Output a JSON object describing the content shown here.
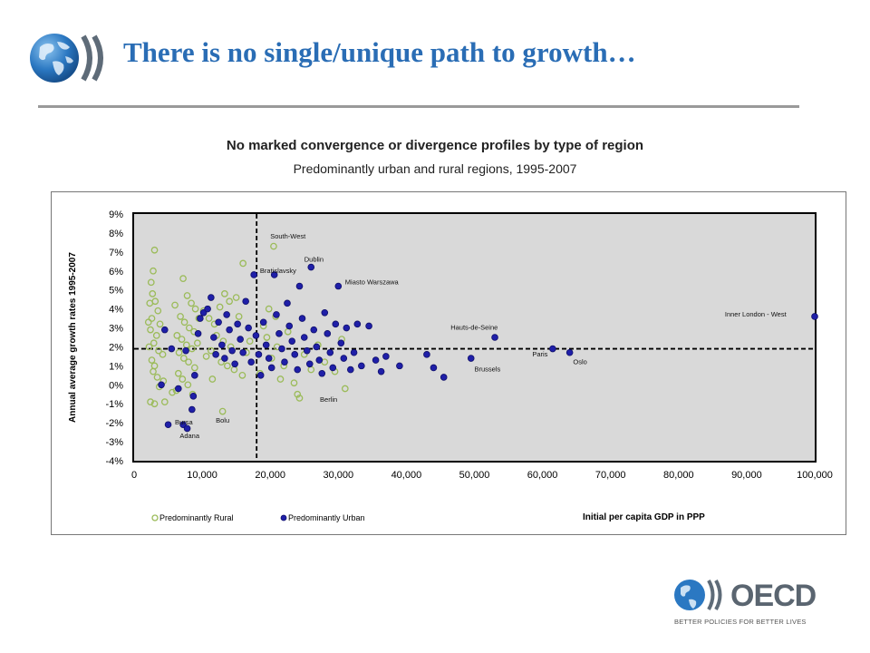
{
  "slide": {
    "title": "There is no single/unique path to  growth…"
  },
  "branding": {
    "logo_icon": "globe-icon",
    "word": "OECD",
    "tagline": "BETTER POLICIES FOR BETTER LIVES"
  },
  "colors": {
    "title": "#2a6db5",
    "rural": "#9bbb59",
    "urban": "#1f1fa8",
    "urban_edge": "#10106a",
    "plot_bg": "#d9d9d9"
  },
  "chart_data": {
    "type": "scatter",
    "title": "No marked convergence or divergence profiles by type of region",
    "subtitle": "Predominantly urban and rural regions, 1995-2007",
    "xlabel": "Initial per capita GDP in PPP",
    "ylabel": "Annual average growth rates 1995-2007",
    "xlim": [
      0,
      100000
    ],
    "ylim": [
      -4,
      9
    ],
    "x_ticks": [
      "0",
      "10,000",
      "20,000",
      "30,000",
      "40,000",
      "50,000",
      "60,000",
      "70,000",
      "80,000",
      "90,000",
      "100,000"
    ],
    "y_ticks": [
      "9%",
      "8%",
      "7%",
      "6%",
      "5%",
      "4%",
      "3%",
      "2%",
      "1%",
      "0%",
      "-1%",
      "-2%",
      "-3%",
      "-4%"
    ],
    "reference_lines": {
      "x": 18000,
      "y": 1.9,
      "style": "dashed"
    },
    "grid": false,
    "legend_position": "bottom-left",
    "series": [
      {
        "name": "Predominantly Rural",
        "marker": "hollow-circle",
        "points": [
          [
            3000,
            7.1
          ],
          [
            2800,
            6.0
          ],
          [
            2500,
            5.4
          ],
          [
            2700,
            4.8
          ],
          [
            2300,
            4.3
          ],
          [
            3100,
            4.4
          ],
          [
            3500,
            3.9
          ],
          [
            2600,
            3.5
          ],
          [
            2100,
            3.3
          ],
          [
            3800,
            3.2
          ],
          [
            2400,
            2.9
          ],
          [
            3300,
            2.6
          ],
          [
            2900,
            2.2
          ],
          [
            2200,
            2.0
          ],
          [
            3600,
            1.8
          ],
          [
            4200,
            1.6
          ],
          [
            2600,
            1.3
          ],
          [
            3000,
            1.0
          ],
          [
            2800,
            0.7
          ],
          [
            3400,
            0.4
          ],
          [
            4300,
            0.2
          ],
          [
            3700,
            -0.1
          ],
          [
            2400,
            -0.9
          ],
          [
            3000,
            -1.0
          ],
          [
            4500,
            -0.9
          ],
          [
            6000,
            4.2
          ],
          [
            7200,
            5.6
          ],
          [
            7800,
            4.7
          ],
          [
            8400,
            4.3
          ],
          [
            9000,
            4.0
          ],
          [
            6800,
            3.6
          ],
          [
            7400,
            3.3
          ],
          [
            8100,
            3.0
          ],
          [
            8800,
            2.8
          ],
          [
            9500,
            3.5
          ],
          [
            6300,
            2.6
          ],
          [
            7000,
            2.4
          ],
          [
            7700,
            2.1
          ],
          [
            8500,
            1.9
          ],
          [
            9300,
            2.2
          ],
          [
            6600,
            1.7
          ],
          [
            7300,
            1.4
          ],
          [
            8000,
            1.2
          ],
          [
            8900,
            0.9
          ],
          [
            6500,
            0.6
          ],
          [
            7100,
            0.3
          ],
          [
            7900,
            0.0
          ],
          [
            6200,
            -0.3
          ],
          [
            8600,
            -0.5
          ],
          [
            5600,
            -0.4
          ],
          [
            10200,
            3.9
          ],
          [
            11000,
            3.5
          ],
          [
            11800,
            3.2
          ],
          [
            12600,
            4.1
          ],
          [
            13300,
            4.8
          ],
          [
            14000,
            4.4
          ],
          [
            15000,
            4.6
          ],
          [
            16000,
            6.4
          ],
          [
            15400,
            3.6
          ],
          [
            12100,
            2.6
          ],
          [
            13100,
            2.3
          ],
          [
            14200,
            2.0
          ],
          [
            11300,
            1.8
          ],
          [
            10600,
            1.5
          ],
          [
            12800,
            1.2
          ],
          [
            13700,
            1.0
          ],
          [
            14700,
            0.8
          ],
          [
            15900,
            0.5
          ],
          [
            11500,
            0.3
          ],
          [
            13000,
            -1.4
          ],
          [
            16500,
            1.7
          ],
          [
            17000,
            2.3
          ],
          [
            19000,
            3.1
          ],
          [
            20500,
            7.3
          ],
          [
            19500,
            2.5
          ],
          [
            21000,
            2.0
          ],
          [
            20200,
            1.4
          ],
          [
            22000,
            1.0
          ],
          [
            18500,
            0.6
          ],
          [
            21500,
            0.3
          ],
          [
            22600,
            2.8
          ],
          [
            23500,
            0.1
          ],
          [
            24000,
            -0.5
          ],
          [
            24300,
            -0.7
          ],
          [
            25000,
            1.6
          ],
          [
            26000,
            0.8
          ],
          [
            27000,
            2.1
          ],
          [
            28000,
            1.2
          ],
          [
            29500,
            0.7
          ],
          [
            30500,
            2.4
          ],
          [
            31000,
            -0.2
          ],
          [
            19800,
            4.0
          ],
          [
            20800,
            3.6
          ]
        ]
      },
      {
        "name": "Predominantly Urban",
        "marker": "filled-circle",
        "points": [
          [
            4000,
            0.0
          ],
          [
            4500,
            2.9
          ],
          [
            5000,
            -2.1
          ],
          [
            5500,
            1.9
          ],
          [
            6500,
            -0.2
          ],
          [
            7200,
            -2.1
          ],
          [
            7800,
            -2.3
          ],
          [
            8500,
            -1.3
          ],
          [
            8700,
            -0.6
          ],
          [
            8900,
            0.5
          ],
          [
            7600,
            1.8
          ],
          [
            9400,
            2.7
          ],
          [
            9700,
            3.5
          ],
          [
            10200,
            3.8
          ],
          [
            10800,
            4.0
          ],
          [
            11300,
            4.6
          ],
          [
            11700,
            2.5
          ],
          [
            12000,
            1.6
          ],
          [
            12400,
            3.3
          ],
          [
            12900,
            2.1
          ],
          [
            13300,
            1.4
          ],
          [
            13600,
            3.7
          ],
          [
            14000,
            2.9
          ],
          [
            14400,
            1.8
          ],
          [
            14800,
            1.1
          ],
          [
            15200,
            3.2
          ],
          [
            15600,
            2.4
          ],
          [
            16000,
            1.7
          ],
          [
            16400,
            4.4
          ],
          [
            16800,
            3.0
          ],
          [
            17200,
            1.2
          ],
          [
            17600,
            5.8
          ],
          [
            17900,
            2.6
          ],
          [
            18300,
            1.6
          ],
          [
            18600,
            0.5
          ],
          [
            19000,
            3.3
          ],
          [
            19400,
            2.1
          ],
          [
            19800,
            1.4
          ],
          [
            20200,
            0.9
          ],
          [
            20600,
            5.8
          ],
          [
            20900,
            3.7
          ],
          [
            21300,
            2.7
          ],
          [
            21700,
            1.9
          ],
          [
            22100,
            1.2
          ],
          [
            22500,
            4.3
          ],
          [
            22800,
            3.1
          ],
          [
            23200,
            2.3
          ],
          [
            23600,
            1.6
          ],
          [
            24000,
            0.8
          ],
          [
            24300,
            5.2
          ],
          [
            24700,
            3.5
          ],
          [
            25000,
            2.5
          ],
          [
            25400,
            1.8
          ],
          [
            25800,
            1.1
          ],
          [
            26000,
            6.2
          ],
          [
            26400,
            2.9
          ],
          [
            26800,
            2.0
          ],
          [
            27200,
            1.3
          ],
          [
            27600,
            0.6
          ],
          [
            28000,
            3.8
          ],
          [
            28400,
            2.7
          ],
          [
            28800,
            1.7
          ],
          [
            29200,
            0.9
          ],
          [
            29600,
            3.2
          ],
          [
            30000,
            5.2
          ],
          [
            30400,
            2.2
          ],
          [
            30800,
            1.4
          ],
          [
            31200,
            3.0
          ],
          [
            31800,
            0.8
          ],
          [
            32300,
            1.7
          ],
          [
            32800,
            3.2
          ],
          [
            33400,
            1.0
          ],
          [
            34500,
            3.1
          ],
          [
            35500,
            1.3
          ],
          [
            36300,
            0.7
          ],
          [
            37000,
            1.5
          ],
          [
            39000,
            1.0
          ],
          [
            43000,
            1.6
          ],
          [
            44000,
            0.9
          ],
          [
            45500,
            0.4
          ],
          [
            49500,
            1.4
          ],
          [
            53000,
            2.5
          ],
          [
            61500,
            1.9
          ],
          [
            64000,
            1.7
          ],
          [
            100000,
            3.6
          ]
        ]
      }
    ],
    "annotations": [
      {
        "text": "South-West",
        "x": 20000,
        "y": 7.7
      },
      {
        "text": "Dublin",
        "x": 25000,
        "y": 6.5
      },
      {
        "text": "Bratislavsky",
        "x": 18500,
        "y": 5.9
      },
      {
        "text": "Miasto Warszawa",
        "x": 31000,
        "y": 5.3
      },
      {
        "text": "Hauts-de-Seine",
        "x": 46500,
        "y": 2.9
      },
      {
        "text": "Inner London  - West",
        "x": 86800,
        "y": 3.6
      },
      {
        "text": "Paris",
        "x": 58500,
        "y": 1.5
      },
      {
        "text": "Oslo",
        "x": 64500,
        "y": 1.1
      },
      {
        "text": "Brussels",
        "x": 50000,
        "y": 0.7
      },
      {
        "text": "Berlin",
        "x": 27300,
        "y": -0.9
      },
      {
        "text": "Bolu",
        "x": 12000,
        "y": -2.0
      },
      {
        "text": "Bursa",
        "x": 6000,
        "y": -2.1
      },
      {
        "text": "Adana",
        "x": 6700,
        "y": -2.8
      }
    ]
  }
}
